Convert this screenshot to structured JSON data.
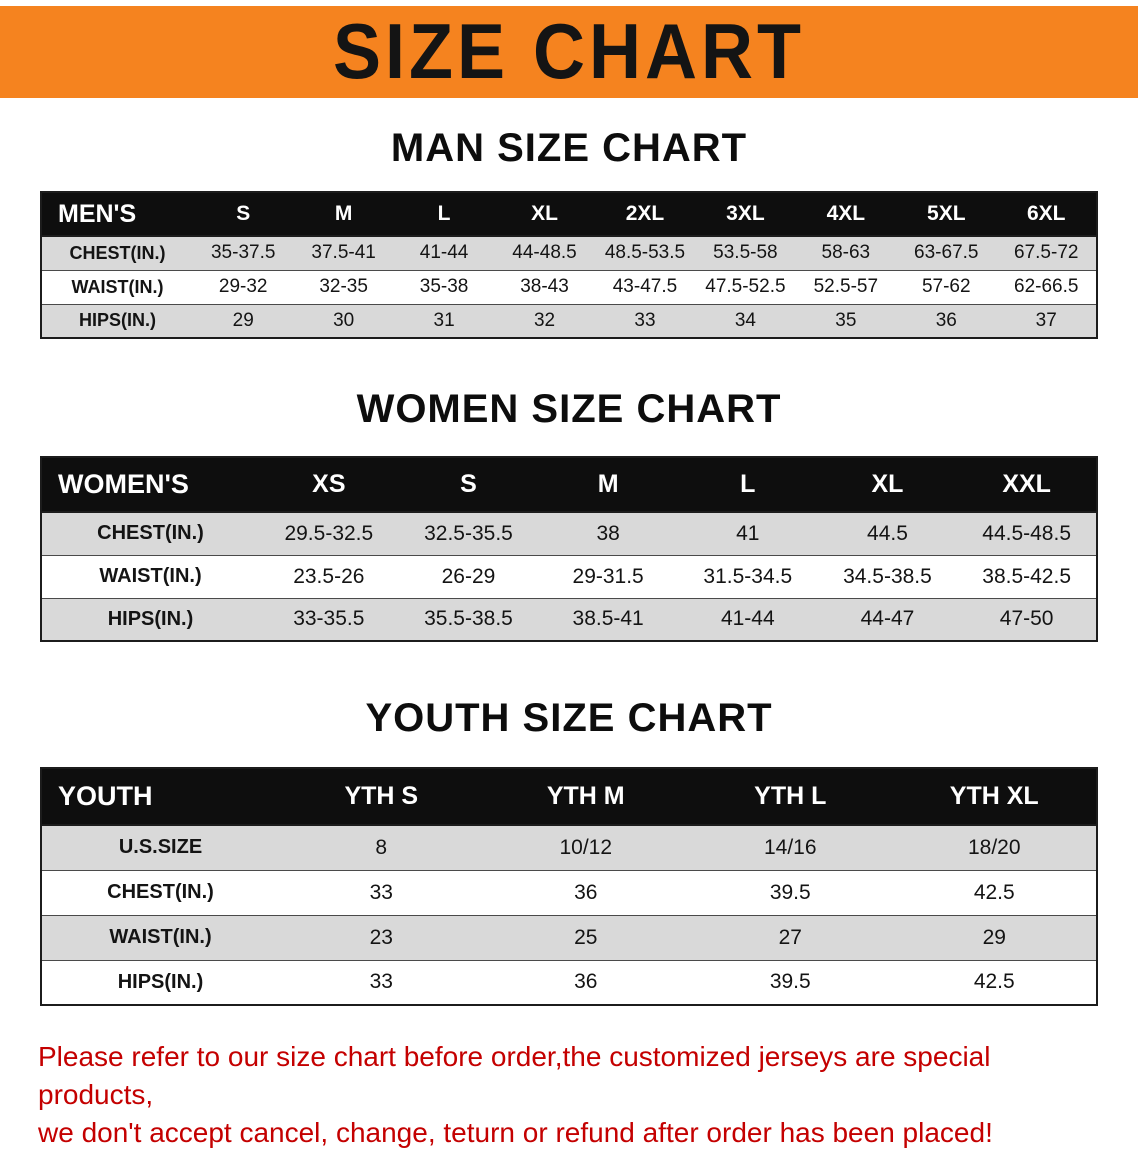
{
  "banner": {
    "title": "SIZE CHART"
  },
  "chart_data": [
    {
      "type": "table",
      "title": "MAN SIZE CHART",
      "header": [
        "MEN'S",
        "S",
        "M",
        "L",
        "XL",
        "2XL",
        "3XL",
        "4XL",
        "5XL",
        "6XL"
      ],
      "rows": [
        [
          "CHEST(IN.)",
          "35-37.5",
          "37.5-41",
          "41-44",
          "44-48.5",
          "48.5-53.5",
          "53.5-58",
          "58-63",
          "63-67.5",
          "67.5-72"
        ],
        [
          "WAIST(IN.)",
          "29-32",
          "32-35",
          "35-38",
          "38-43",
          "43-47.5",
          "47.5-52.5",
          "52.5-57",
          "57-62",
          "62-66.5"
        ],
        [
          "HIPS(IN.)",
          "29",
          "30",
          "31",
          "32",
          "33",
          "34",
          "35",
          "36",
          "37"
        ]
      ]
    },
    {
      "type": "table",
      "title": "WOMEN SIZE CHART",
      "header": [
        "WOMEN'S",
        "XS",
        "S",
        "M",
        "L",
        "XL",
        "XXL"
      ],
      "rows": [
        [
          "CHEST(IN.)",
          "29.5-32.5",
          "32.5-35.5",
          "38",
          "41",
          "44.5",
          "44.5-48.5"
        ],
        [
          "WAIST(IN.)",
          "23.5-26",
          "26-29",
          "29-31.5",
          "31.5-34.5",
          "34.5-38.5",
          "38.5-42.5"
        ],
        [
          "HIPS(IN.)",
          "33-35.5",
          "35.5-38.5",
          "38.5-41",
          "41-44",
          "44-47",
          "47-50"
        ]
      ]
    },
    {
      "type": "table",
      "title": "YOUTH SIZE CHART",
      "header": [
        "YOUTH",
        "YTH S",
        "YTH M",
        "YTH L",
        "YTH XL"
      ],
      "rows": [
        [
          "U.S.SIZE",
          "8",
          "10/12",
          "14/16",
          "18/20"
        ],
        [
          "CHEST(IN.)",
          "33",
          "36",
          "39.5",
          "42.5"
        ],
        [
          "WAIST(IN.)",
          "23",
          "25",
          "27",
          "29"
        ],
        [
          "HIPS(IN.)",
          "33",
          "36",
          "39.5",
          "42.5"
        ]
      ]
    }
  ],
  "footer": {
    "line1": "Please refer to our size chart before order,the customized jerseys are special products,",
    "line2": "we don't accept cancel, change, teturn or refund after order has been placed!"
  },
  "colors": {
    "banner_bg": "#F5831F",
    "header_bg": "#0E0E0E",
    "row_stripe": "#D9D9D9",
    "notice_text": "#C40000"
  }
}
